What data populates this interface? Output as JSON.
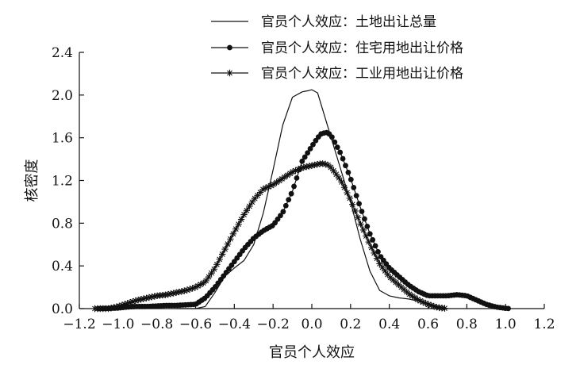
{
  "chart_data": {
    "type": "line",
    "xlabel": "官员个人效应",
    "ylabel": "核密度",
    "xlim": [
      -1.2,
      1.2
    ],
    "ylim": [
      0,
      2.4
    ],
    "x_ticks": [
      "−1.2",
      "−1.0",
      "−0.8",
      "−0.6",
      "−0.4",
      "−0.2",
      "0.0",
      "0.2",
      "0.4",
      "0.6",
      "0.8",
      "1.0",
      "1.2"
    ],
    "y_ticks": [
      "0.0",
      "0.4",
      "0.8",
      "1.2",
      "1.6",
      "2.0",
      "2.4"
    ],
    "x_tick_values": [
      -1.2,
      -1.0,
      -0.8,
      -0.6,
      -0.4,
      -0.2,
      0.0,
      0.2,
      0.4,
      0.6,
      0.8,
      1.0,
      1.2
    ],
    "y_tick_values": [
      0.0,
      0.4,
      0.8,
      1.2,
      1.6,
      2.0,
      2.4
    ],
    "grid": false,
    "legend_position": "top-right",
    "series": [
      {
        "name": "官员个人效应：土地出让总量",
        "marker": "none",
        "color": "#111111",
        "x": [
          -0.7,
          -0.6,
          -0.55,
          -0.5,
          -0.45,
          -0.4,
          -0.35,
          -0.3,
          -0.25,
          -0.2,
          -0.15,
          -0.1,
          -0.05,
          -0.02,
          0.0,
          0.03,
          0.05,
          0.1,
          0.15,
          0.2,
          0.25,
          0.3,
          0.35,
          0.4,
          0.45,
          0.5,
          0.55,
          0.6,
          0.65,
          0.7
        ],
        "y": [
          0.0,
          0.0,
          0.02,
          0.15,
          0.3,
          0.38,
          0.45,
          0.6,
          0.9,
          1.3,
          1.72,
          1.98,
          2.03,
          2.04,
          2.05,
          2.02,
          1.9,
          1.6,
          1.3,
          1.0,
          0.65,
          0.35,
          0.17,
          0.12,
          0.1,
          0.09,
          0.07,
          0.05,
          0.02,
          0.0
        ]
      },
      {
        "name": "官员个人效应：住宅用地出让价格",
        "marker": "circle",
        "color": "#111111",
        "x": [
          -1.1,
          -1.0,
          -0.95,
          -0.9,
          -0.85,
          -0.8,
          -0.75,
          -0.7,
          -0.65,
          -0.6,
          -0.55,
          -0.5,
          -0.45,
          -0.4,
          -0.35,
          -0.3,
          -0.25,
          -0.2,
          -0.15,
          -0.1,
          -0.05,
          0.0,
          0.03,
          0.05,
          0.08,
          0.1,
          0.15,
          0.2,
          0.25,
          0.3,
          0.35,
          0.4,
          0.45,
          0.5,
          0.55,
          0.6,
          0.65,
          0.7,
          0.75,
          0.8,
          0.85,
          0.9,
          0.95,
          1.0,
          1.02
        ],
        "y": [
          0.0,
          0.005,
          0.015,
          0.02,
          0.02,
          0.025,
          0.03,
          0.03,
          0.035,
          0.04,
          0.1,
          0.2,
          0.32,
          0.44,
          0.56,
          0.66,
          0.73,
          0.78,
          0.9,
          1.1,
          1.38,
          1.52,
          1.6,
          1.64,
          1.65,
          1.62,
          1.45,
          1.22,
          0.95,
          0.7,
          0.5,
          0.38,
          0.3,
          0.22,
          0.16,
          0.12,
          0.12,
          0.12,
          0.13,
          0.12,
          0.08,
          0.04,
          0.015,
          0.003,
          0.0
        ]
      },
      {
        "name": "官员个人效应：工业用地出让价格",
        "marker": "star",
        "color": "#111111",
        "x": [
          -1.12,
          -1.05,
          -1.0,
          -0.95,
          -0.9,
          -0.85,
          -0.8,
          -0.75,
          -0.7,
          -0.65,
          -0.6,
          -0.55,
          -0.5,
          -0.45,
          -0.4,
          -0.35,
          -0.3,
          -0.25,
          -0.2,
          -0.15,
          -0.1,
          -0.05,
          0.0,
          0.05,
          0.08,
          0.1,
          0.15,
          0.2,
          0.25,
          0.3,
          0.35,
          0.4,
          0.45,
          0.5,
          0.55,
          0.6,
          0.65,
          0.7
        ],
        "y": [
          0.0,
          0.0,
          0.02,
          0.05,
          0.08,
          0.1,
          0.12,
          0.13,
          0.15,
          0.17,
          0.2,
          0.25,
          0.38,
          0.55,
          0.72,
          0.88,
          1.02,
          1.12,
          1.16,
          1.22,
          1.28,
          1.32,
          1.34,
          1.36,
          1.35,
          1.32,
          1.2,
          1.02,
          0.8,
          0.6,
          0.42,
          0.3,
          0.22,
          0.14,
          0.08,
          0.04,
          0.01,
          0.0
        ]
      }
    ]
  }
}
